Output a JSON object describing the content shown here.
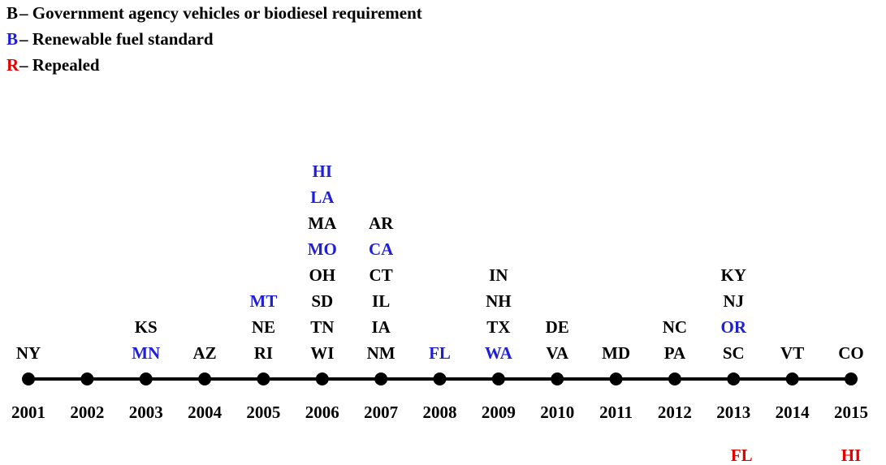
{
  "legend": [
    {
      "letter": "B",
      "text": "– Government agency vehicles or biodiesel requirement",
      "color": "#000000"
    },
    {
      "letter": "B",
      "text": "– Renewable fuel standard",
      "color": "#1f1fd6"
    },
    {
      "letter": "R",
      "text": "– Repealed",
      "color": "#e50000"
    }
  ],
  "repealed_color": "#e50000",
  "timeline": [
    {
      "year": "2001",
      "states": [
        {
          "name": "NY",
          "color": "#000000"
        }
      ]
    },
    {
      "year": "2002",
      "states": []
    },
    {
      "year": "2003",
      "states": [
        {
          "name": "KS",
          "color": "#000000"
        },
        {
          "name": "MN",
          "color": "#1f1fd6"
        }
      ]
    },
    {
      "year": "2004",
      "states": [
        {
          "name": "AZ",
          "color": "#000000"
        }
      ]
    },
    {
      "year": "2005",
      "states": [
        {
          "name": "MT",
          "color": "#1f1fd6"
        },
        {
          "name": "NE",
          "color": "#000000"
        },
        {
          "name": "RI",
          "color": "#000000"
        }
      ]
    },
    {
      "year": "2006",
      "states": [
        {
          "name": "HI",
          "color": "#1f1fd6"
        },
        {
          "name": "LA",
          "color": "#1f1fd6"
        },
        {
          "name": "MA",
          "color": "#000000"
        },
        {
          "name": "MO",
          "color": "#1f1fd6"
        },
        {
          "name": "OH",
          "color": "#000000"
        },
        {
          "name": "SD",
          "color": "#000000"
        },
        {
          "name": "TN",
          "color": "#000000"
        },
        {
          "name": "WI",
          "color": "#000000"
        }
      ]
    },
    {
      "year": "2007",
      "states": [
        {
          "name": "AR",
          "color": "#000000"
        },
        {
          "name": "CA",
          "color": "#1f1fd6"
        },
        {
          "name": "CT",
          "color": "#000000"
        },
        {
          "name": "IL",
          "color": "#000000"
        },
        {
          "name": "IA",
          "color": "#000000"
        },
        {
          "name": "NM",
          "color": "#000000"
        }
      ]
    },
    {
      "year": "2008",
      "states": [
        {
          "name": "FL",
          "color": "#1f1fd6"
        }
      ]
    },
    {
      "year": "2009",
      "states": [
        {
          "name": "IN",
          "color": "#000000"
        },
        {
          "name": "NH",
          "color": "#000000"
        },
        {
          "name": "TX",
          "color": "#000000"
        },
        {
          "name": "WA",
          "color": "#1f1fd6"
        }
      ]
    },
    {
      "year": "2010",
      "states": [
        {
          "name": "DE",
          "color": "#000000"
        },
        {
          "name": "VA",
          "color": "#000000"
        }
      ]
    },
    {
      "year": "2011",
      "states": [
        {
          "name": "MD",
          "color": "#000000"
        }
      ]
    },
    {
      "year": "2012",
      "states": [
        {
          "name": "NC",
          "color": "#000000"
        },
        {
          "name": "PA",
          "color": "#000000"
        }
      ]
    },
    {
      "year": "2013",
      "states": [
        {
          "name": "KY",
          "color": "#000000"
        },
        {
          "name": "NJ",
          "color": "#000000"
        },
        {
          "name": "OR",
          "color": "#1f1fd6"
        },
        {
          "name": "SC",
          "color": "#000000"
        }
      ],
      "repealed": [
        "FL"
      ]
    },
    {
      "year": "2014",
      "states": [
        {
          "name": "VT",
          "color": "#000000"
        }
      ]
    },
    {
      "year": "2015",
      "states": [
        {
          "name": "CO",
          "color": "#000000"
        }
      ],
      "repealed": [
        "HI"
      ]
    }
  ]
}
